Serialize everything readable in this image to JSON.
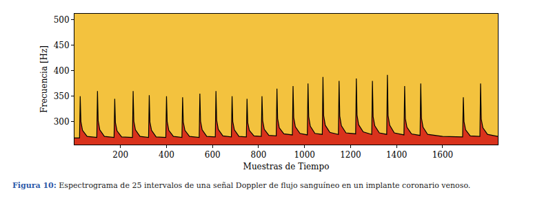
{
  "chart_data": {
    "type": "area",
    "x_label": "Muestras de Tiempo",
    "y_label": "Frecuencia [Hz]",
    "color": "#000000",
    "grid": false,
    "xlim": [
      0,
      1840
    ],
    "xticks": [
      200,
      400,
      600,
      800,
      1000,
      1200,
      1400,
      1600
    ],
    "ylim": [
      255,
      512
    ],
    "yticks": [
      300,
      350,
      400,
      450,
      500
    ],
    "x": [
      0,
      22,
      25,
      28,
      35,
      55,
      97,
      100,
      103,
      110,
      130,
      172,
      175,
      178,
      185,
      205,
      252,
      255,
      258,
      265,
      285,
      322,
      325,
      328,
      335,
      355,
      397,
      400,
      403,
      410,
      430,
      467,
      470,
      473,
      480,
      500,
      542,
      545,
      548,
      555,
      575,
      612,
      615,
      618,
      625,
      645,
      682,
      685,
      688,
      695,
      715,
      747,
      750,
      753,
      760,
      780,
      812,
      815,
      818,
      825,
      845,
      877,
      880,
      883,
      890,
      910,
      947,
      950,
      953,
      960,
      980,
      1012,
      1015,
      1018,
      1025,
      1045,
      1077,
      1080,
      1083,
      1090,
      1110,
      1147,
      1150,
      1153,
      1160,
      1180,
      1222,
      1225,
      1228,
      1235,
      1255,
      1292,
      1295,
      1298,
      1305,
      1325,
      1357,
      1360,
      1363,
      1370,
      1390,
      1432,
      1435,
      1438,
      1445,
      1465,
      1502,
      1505,
      1508,
      1515,
      1535,
      1600,
      1687,
      1690,
      1693,
      1700,
      1720,
      1762,
      1765,
      1768,
      1775,
      1795,
      1840
    ],
    "values": [
      268,
      268,
      350,
      300,
      283,
      271,
      269,
      360,
      302,
      284,
      271,
      269,
      345,
      298,
      282,
      270,
      269,
      360,
      301,
      284,
      271,
      269,
      352,
      299,
      283,
      270,
      269,
      350,
      300,
      283,
      271,
      269,
      348,
      299,
      283,
      271,
      269,
      355,
      301,
      284,
      271,
      270,
      360,
      303,
      285,
      272,
      270,
      350,
      300,
      284,
      271,
      270,
      345,
      298,
      283,
      272,
      271,
      350,
      302,
      285,
      273,
      272,
      365,
      306,
      288,
      276,
      274,
      370,
      308,
      290,
      277,
      274,
      375,
      310,
      291,
      277,
      275,
      388,
      312,
      293,
      279,
      275,
      380,
      311,
      292,
      278,
      276,
      385,
      313,
      294,
      280,
      275,
      380,
      310,
      292,
      278,
      275,
      392,
      312,
      293,
      278,
      274,
      370,
      306,
      289,
      276,
      273,
      375,
      307,
      289,
      275,
      271,
      270,
      348,
      300,
      284,
      272,
      271,
      375,
      305,
      288,
      275,
      271
    ]
  },
  "caption": {
    "label": "Figura 10:",
    "text": "Espectrograma de 25 intervalos de una señal Doppler de flujo sanguíneo en un implante coronario venoso."
  }
}
